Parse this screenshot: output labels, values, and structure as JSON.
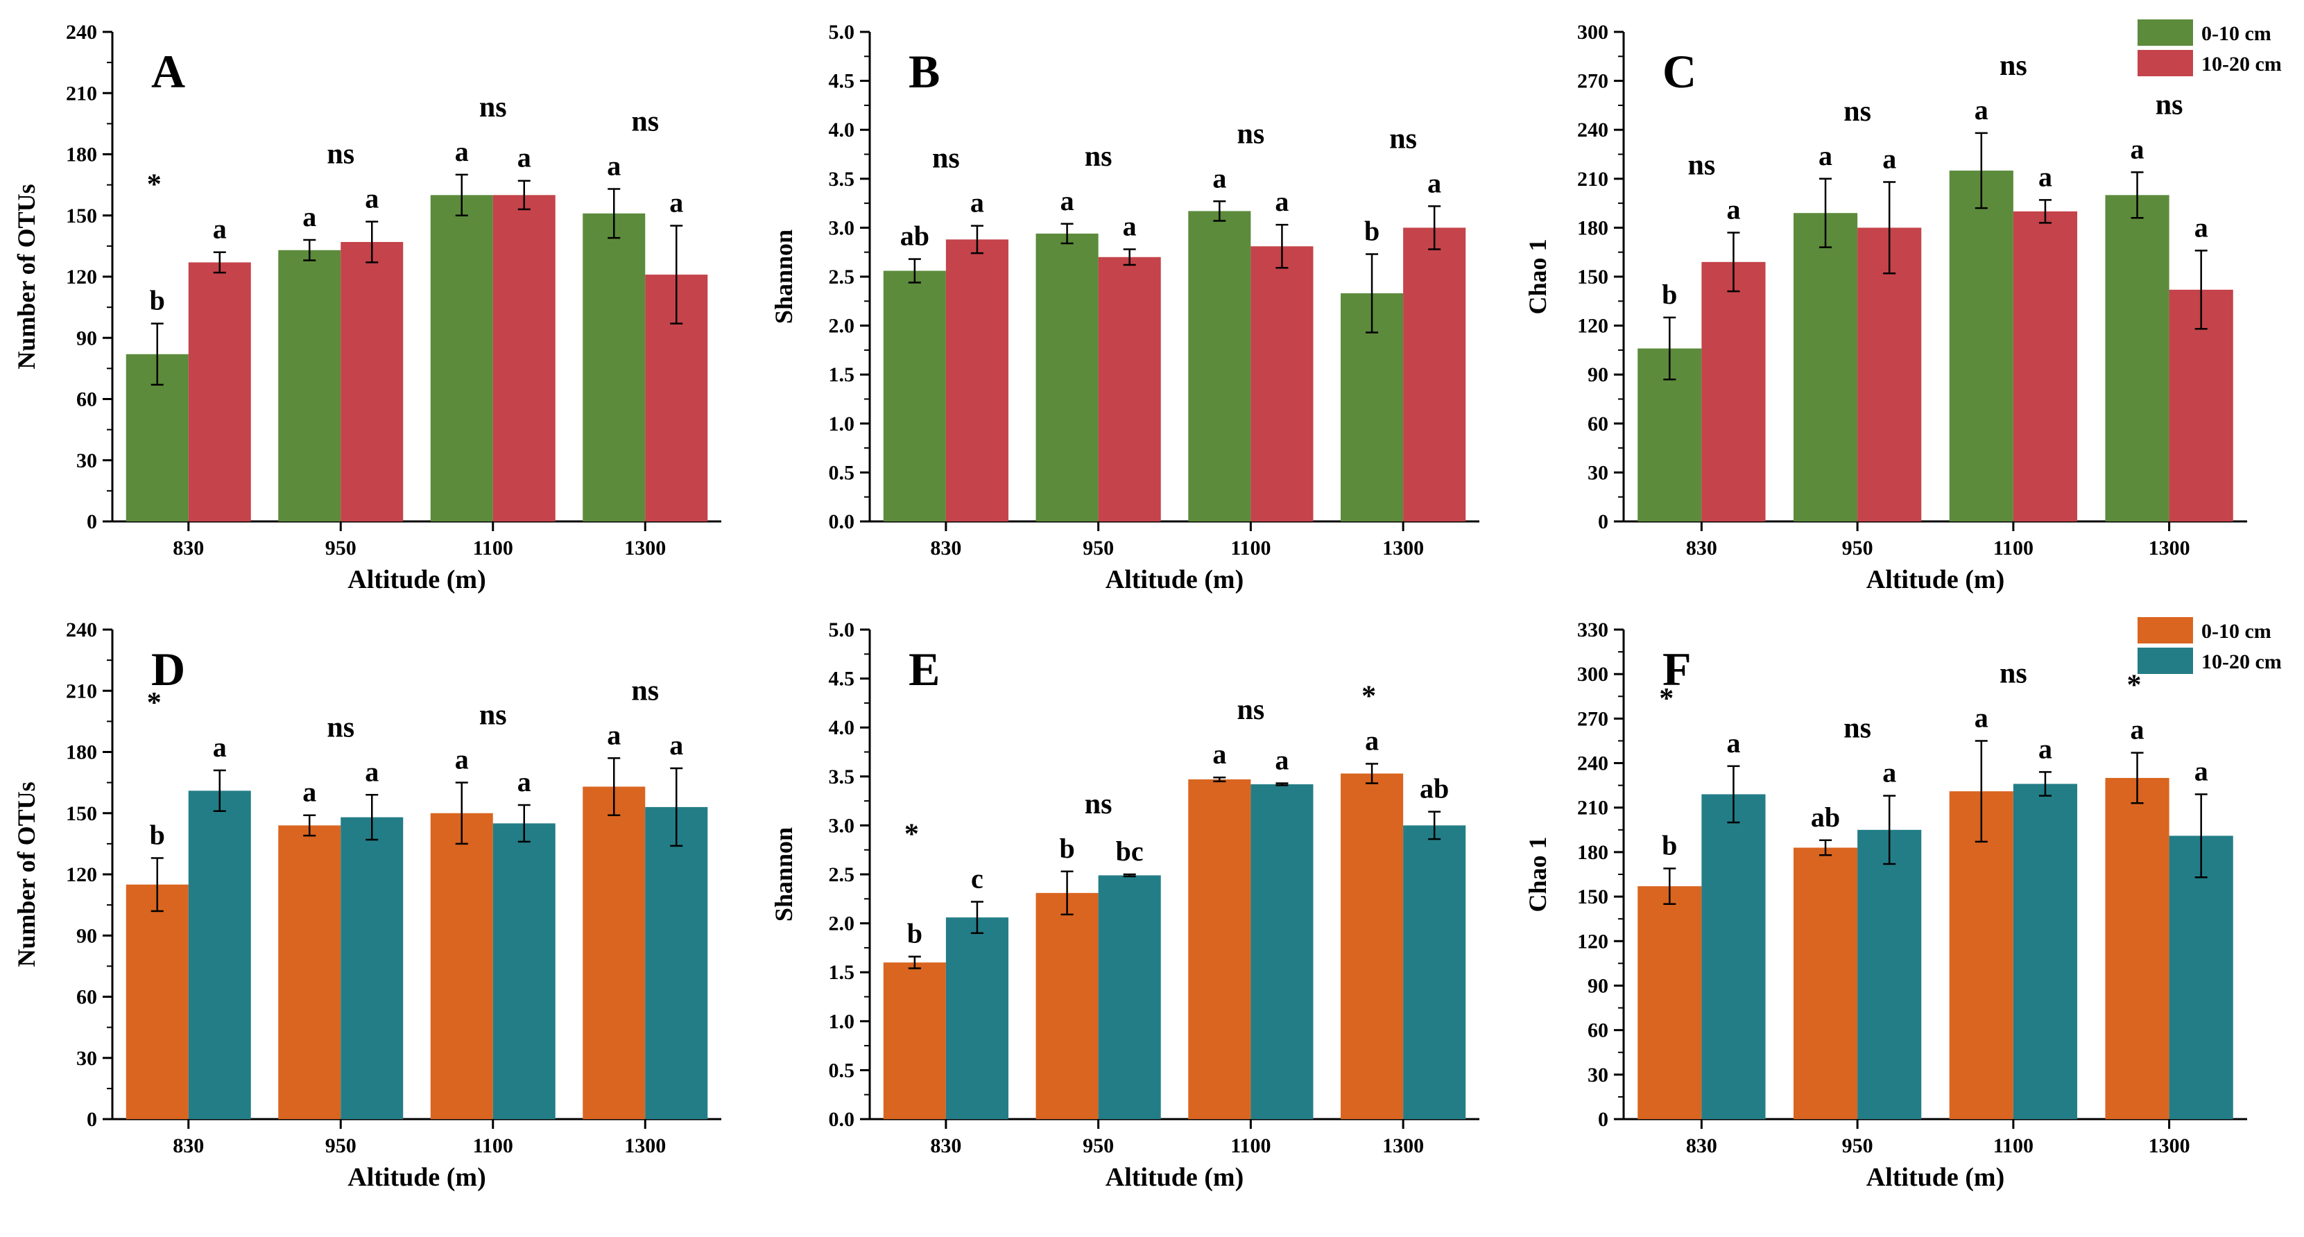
{
  "chart_data": [
    {
      "panel": "A",
      "type": "bar",
      "xlabel": "Altitude (m)",
      "ylabel": "Number of OTUs",
      "categories": [
        "830",
        "950",
        "1100",
        "1300"
      ],
      "ylim": [
        0,
        240
      ],
      "yticks": [
        "0",
        "30",
        "60",
        "90",
        "120",
        "150",
        "180",
        "210",
        "240"
      ],
      "series": [
        {
          "name": "0-10 cm",
          "color": "#5c8b3c",
          "values": [
            82,
            133,
            160,
            151
          ],
          "errors": [
            15,
            5,
            10,
            12
          ],
          "letters": [
            "b",
            "a",
            "a",
            "a"
          ]
        },
        {
          "name": "10-20 cm",
          "color": "#c5434a",
          "values": [
            127,
            137,
            160,
            121
          ],
          "errors": [
            5,
            10,
            7,
            24
          ],
          "letters": [
            "a",
            "a",
            "a",
            "a"
          ]
        }
      ],
      "significance": [
        "*",
        "ns",
        "ns",
        "ns"
      ]
    },
    {
      "panel": "B",
      "type": "bar",
      "xlabel": "Altitude (m)",
      "ylabel": "Shannon",
      "categories": [
        "830",
        "950",
        "1100",
        "1300"
      ],
      "ylim": [
        0,
        5
      ],
      "yticks": [
        "0.0",
        "0.5",
        "1.0",
        "1.5",
        "2.0",
        "2.5",
        "3.0",
        "3.5",
        "4.0",
        "4.5",
        "5.0"
      ],
      "series": [
        {
          "name": "0-10 cm",
          "color": "#5c8b3c",
          "values": [
            2.56,
            2.94,
            3.17,
            2.33
          ],
          "errors": [
            0.12,
            0.1,
            0.1,
            0.4
          ],
          "letters": [
            "ab",
            "a",
            "a",
            "b"
          ]
        },
        {
          "name": "10-20 cm",
          "color": "#c5434a",
          "values": [
            2.88,
            2.7,
            2.81,
            3.0
          ],
          "errors": [
            0.14,
            0.08,
            0.22,
            0.22
          ],
          "letters": [
            "a",
            "a",
            "a",
            "a"
          ]
        }
      ],
      "significance": [
        "ns",
        "ns",
        "ns",
        "ns"
      ]
    },
    {
      "panel": "C",
      "type": "bar",
      "xlabel": "Altitude (m)",
      "ylabel": "Chao 1",
      "categories": [
        "830",
        "950",
        "1100",
        "1300"
      ],
      "ylim": [
        0,
        300
      ],
      "yticks": [
        "0",
        "30",
        "60",
        "90",
        "120",
        "150",
        "180",
        "210",
        "240",
        "270",
        "300"
      ],
      "series": [
        {
          "name": "0-10 cm",
          "color": "#5c8b3c",
          "values": [
            106,
            189,
            215,
            200
          ],
          "errors": [
            19,
            21,
            23,
            14
          ],
          "letters": [
            "b",
            "a",
            "a",
            "a"
          ]
        },
        {
          "name": "10-20 cm",
          "color": "#c5434a",
          "values": [
            159,
            180,
            190,
            142
          ],
          "errors": [
            18,
            28,
            7,
            24
          ],
          "letters": [
            "a",
            "a",
            "a",
            "a"
          ]
        }
      ],
      "significance": [
        "ns",
        "ns",
        "ns",
        "ns"
      ],
      "legend": true
    },
    {
      "panel": "D",
      "type": "bar",
      "xlabel": "Altitude (m)",
      "ylabel": "Number of OTUs",
      "categories": [
        "830",
        "950",
        "1100",
        "1300"
      ],
      "ylim": [
        0,
        240
      ],
      "yticks": [
        "0",
        "30",
        "60",
        "90",
        "120",
        "150",
        "180",
        "210",
        "240"
      ],
      "series": [
        {
          "name": "0-10 cm",
          "color": "#d96520",
          "values": [
            115,
            144,
            150,
            163
          ],
          "errors": [
            13,
            5,
            15,
            14
          ],
          "letters": [
            "b",
            "a",
            "a",
            "a"
          ]
        },
        {
          "name": "10-20 cm",
          "color": "#237d87",
          "values": [
            161,
            148,
            145,
            153
          ],
          "errors": [
            10,
            11,
            9,
            19
          ],
          "letters": [
            "a",
            "a",
            "a",
            "a"
          ]
        }
      ],
      "significance": [
        "*",
        "ns",
        "ns",
        "ns"
      ]
    },
    {
      "panel": "E",
      "type": "bar",
      "xlabel": "Altitude (m)",
      "ylabel": "Shannon",
      "categories": [
        "830",
        "950",
        "1100",
        "1300"
      ],
      "ylim": [
        0,
        5
      ],
      "yticks": [
        "0.0",
        "0.5",
        "1.0",
        "1.5",
        "2.0",
        "2.5",
        "3.0",
        "3.5",
        "4.0",
        "4.5",
        "5.0"
      ],
      "series": [
        {
          "name": "0-10 cm",
          "color": "#d96520",
          "values": [
            1.6,
            2.31,
            3.47,
            3.53
          ],
          "errors": [
            0.06,
            0.22,
            0.02,
            0.1
          ],
          "letters": [
            "b",
            "b",
            "a",
            "a"
          ]
        },
        {
          "name": "10-20 cm",
          "color": "#237d87",
          "values": [
            2.06,
            2.49,
            3.42,
            3.0
          ],
          "errors": [
            0.16,
            0.01,
            0.01,
            0.14
          ],
          "letters": [
            "c",
            "bc",
            "a",
            "ab"
          ]
        }
      ],
      "significance": [
        "*",
        "ns",
        "ns",
        "*"
      ]
    },
    {
      "panel": "F",
      "type": "bar",
      "xlabel": "Altitude (m)",
      "ylabel": "Chao 1",
      "categories": [
        "830",
        "950",
        "1100",
        "1300"
      ],
      "ylim": [
        0,
        330
      ],
      "yticks": [
        "0",
        "30",
        "60",
        "90",
        "120",
        "150",
        "180",
        "210",
        "240",
        "270",
        "300",
        "330"
      ],
      "series": [
        {
          "name": "0-10 cm",
          "color": "#d96520",
          "values": [
            157,
            183,
            221,
            230
          ],
          "errors": [
            12,
            5,
            34,
            17
          ],
          "letters": [
            "b",
            "ab",
            "a",
            "a"
          ]
        },
        {
          "name": "10-20 cm",
          "color": "#237d87",
          "values": [
            219,
            195,
            226,
            191
          ],
          "errors": [
            19,
            23,
            8,
            28
          ],
          "letters": [
            "a",
            "a",
            "a",
            "a"
          ]
        }
      ],
      "significance": [
        "*",
        "ns",
        "ns",
        "*"
      ],
      "legend": true
    }
  ]
}
